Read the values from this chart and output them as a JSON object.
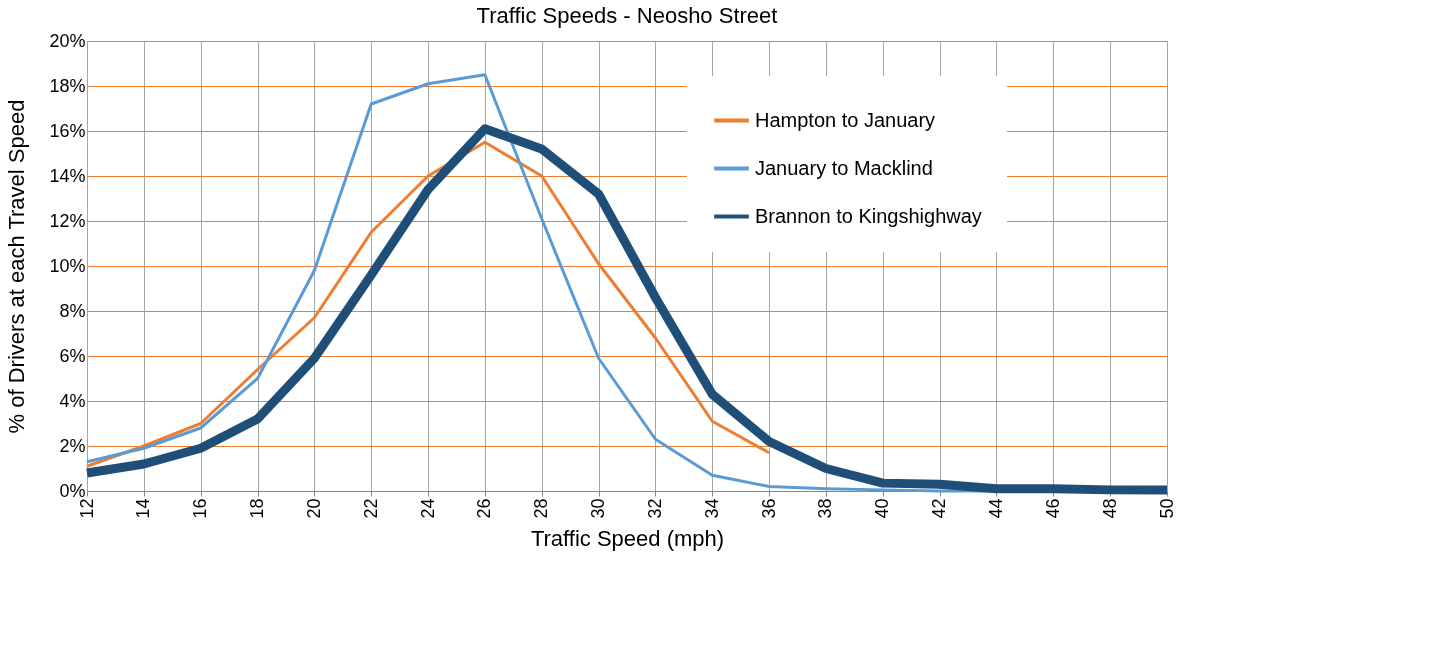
{
  "chart_data": {
    "type": "line",
    "title": "Traffic Speeds - Neosho Street",
    "xlabel": "Traffic Speed (mph)",
    "ylabel": "% of Drivers at each Travel Speed",
    "categories": [
      "12",
      "14",
      "16",
      "18",
      "20",
      "22",
      "24",
      "26",
      "28",
      "30",
      "32",
      "34",
      "36",
      "38",
      "40",
      "42",
      "44",
      "46",
      "48",
      "50"
    ],
    "series": [
      {
        "name": "Hampton to January",
        "color": "#ed7d31",
        "values": [
          1.1,
          2.0,
          3.0,
          5.4,
          7.7,
          11.5,
          14.0,
          15.5,
          14.0,
          10.1,
          6.8,
          3.1,
          1.7,
          null,
          null,
          null,
          null,
          null,
          null,
          null
        ]
      },
      {
        "name": "January to Macklind",
        "color": "#5b9bd5",
        "values": [
          1.3,
          1.9,
          2.8,
          5.0,
          9.8,
          17.2,
          18.1,
          18.5,
          12.1,
          5.9,
          2.3,
          0.7,
          0.2,
          0.1,
          0.05,
          0,
          0,
          0,
          0,
          0
        ]
      },
      {
        "name": "Brannon to Kingshighway",
        "color": "#1f4e79",
        "values": [
          0.8,
          1.2,
          1.9,
          3.2,
          5.9,
          9.6,
          13.4,
          16.1,
          15.2,
          13.2,
          8.6,
          4.3,
          2.2,
          1.0,
          0.35,
          0.3,
          0.1,
          0.1,
          0.05,
          0.05
        ]
      }
    ],
    "ylim": [
      0,
      20
    ],
    "yticks": [
      {
        "value": 0,
        "label": "0%"
      },
      {
        "value": 2,
        "label": "2%"
      },
      {
        "value": 4,
        "label": "4%"
      },
      {
        "value": 6,
        "label": "6%"
      },
      {
        "value": 8,
        "label": "8%"
      },
      {
        "value": 10,
        "label": "10%"
      },
      {
        "value": 12,
        "label": "12%"
      },
      {
        "value": 14,
        "label": "14%"
      },
      {
        "value": 16,
        "label": "16%"
      },
      {
        "value": 18,
        "label": "18%"
      },
      {
        "value": 20,
        "label": "20%"
      }
    ],
    "grid": true,
    "legend": "top right",
    "marker": "none",
    "line_style": "solid"
  }
}
